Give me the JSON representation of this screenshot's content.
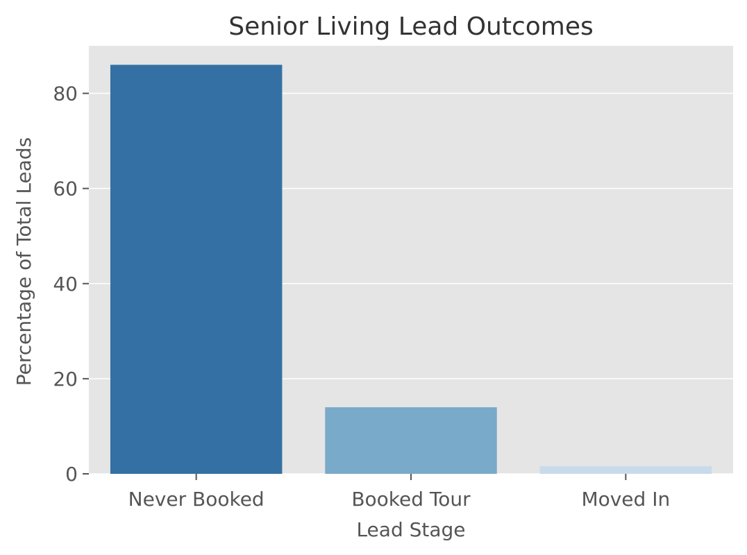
{
  "chart_data": {
    "type": "bar",
    "title": "Senior Living Lead Outcomes",
    "xlabel": "Lead Stage",
    "ylabel": "Percentage of Total Leads",
    "categories": [
      "Never Booked",
      "Booked Tour",
      "Moved In"
    ],
    "values": [
      86.0,
      14.0,
      1.6
    ],
    "bar_colors": [
      "#3470a3",
      "#7aaac9",
      "#c8daec"
    ],
    "ylim": [
      0,
      90
    ],
    "yticks": [
      0,
      20,
      40,
      60,
      80
    ],
    "grid": true,
    "background_color": "#e5e5e5",
    "grid_color": "#ffffff"
  }
}
